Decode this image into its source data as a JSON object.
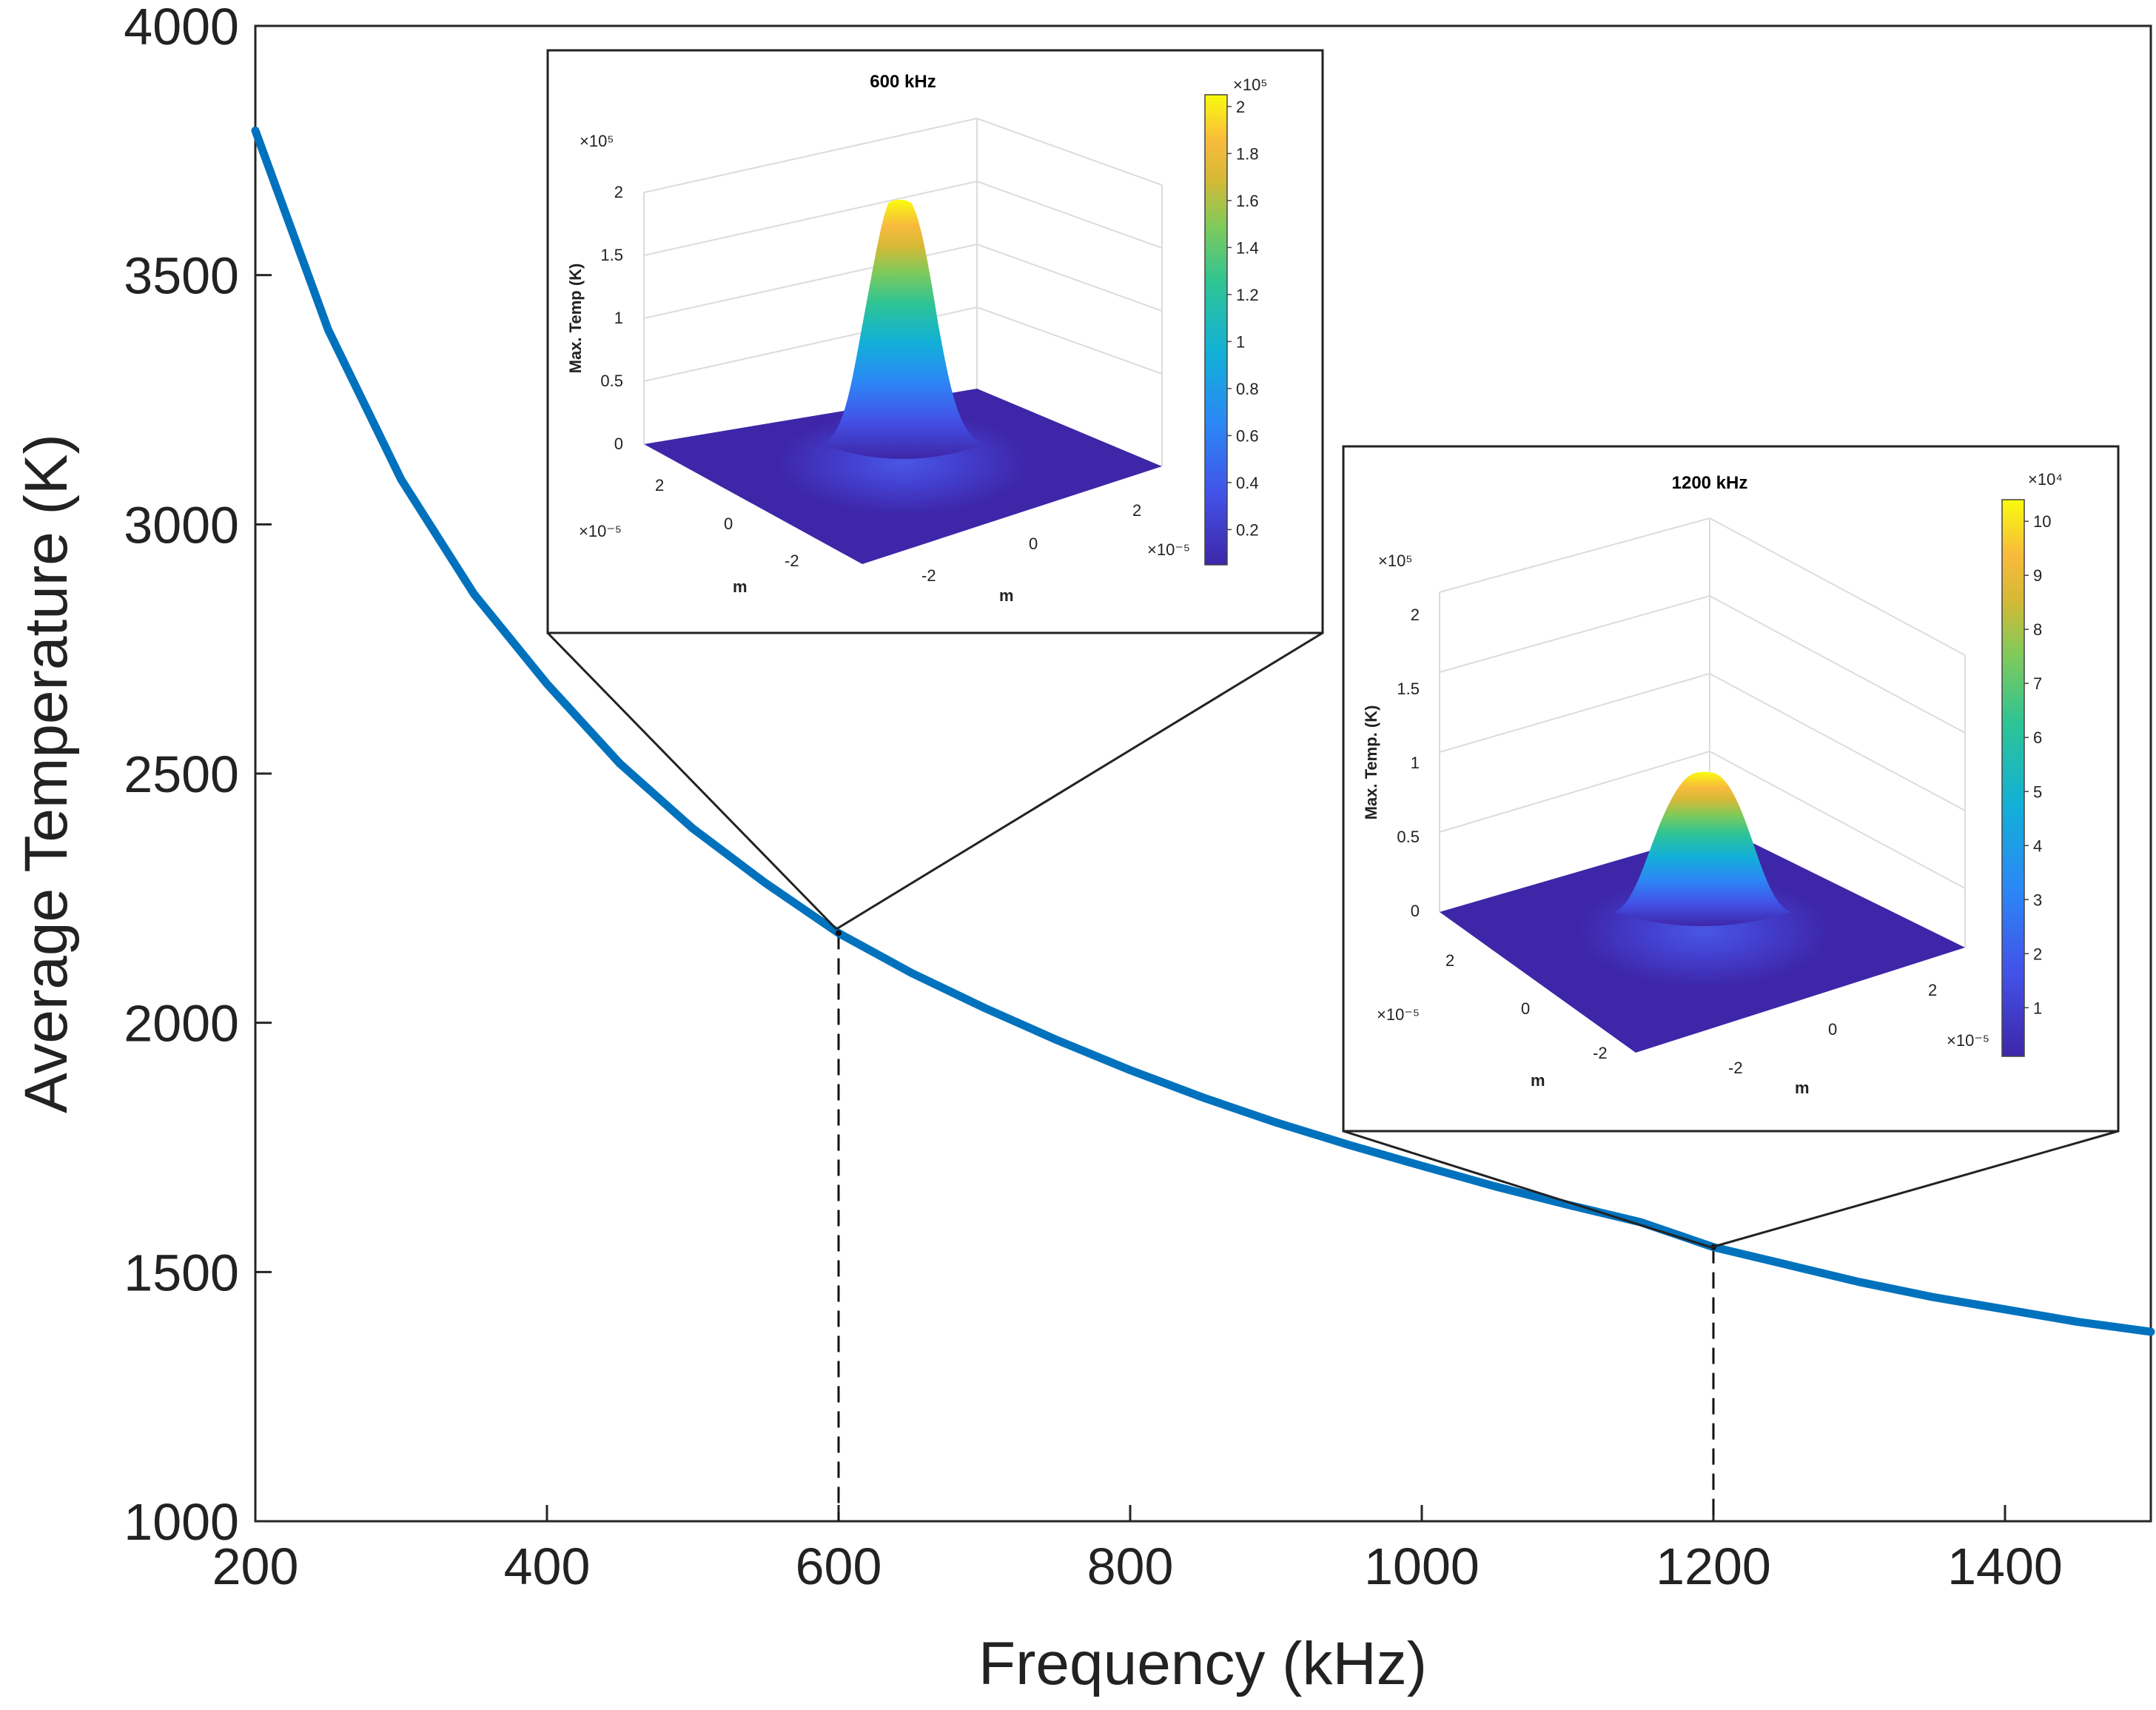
{
  "colors": {
    "curve": "#0072BD",
    "axis": "#262626",
    "surface_base": "#3E26A8",
    "surface_peak": "#F9FB0E"
  },
  "chart_data": {
    "type": "line",
    "xlabel": "Frequency (kHz)",
    "ylabel": "Average Temperature (K)",
    "xlim": [
      200,
      1500
    ],
    "ylim": [
      1000,
      4000
    ],
    "xticks": [
      "200",
      "400",
      "600",
      "800",
      "1000",
      "1200",
      "1400"
    ],
    "yticks": [
      "1000",
      "1500",
      "2000",
      "2500",
      "3000",
      "3500",
      "4000"
    ],
    "series": [
      {
        "name": "Average Temperature",
        "x": [
          200,
          250,
          300,
          350,
          400,
          450,
          500,
          550,
          600,
          650,
          700,
          750,
          800,
          850,
          900,
          950,
          1000,
          1050,
          1100,
          1150,
          1200,
          1250,
          1300,
          1350,
          1400,
          1450,
          1500
        ],
        "y": [
          3790,
          3390,
          3090,
          2860,
          2680,
          2520,
          2390,
          2280,
          2180,
          2100,
          2030,
          1965,
          1905,
          1850,
          1800,
          1755,
          1713,
          1672,
          1635,
          1600,
          1550,
          1515,
          1480,
          1450,
          1425,
          1400,
          1380
        ]
      }
    ],
    "markers": [
      {
        "x": 600,
        "y": 2180
      },
      {
        "x": 1200,
        "y": 1550
      }
    ],
    "insets": [
      {
        "title": "600 kHz",
        "zlabel": "Max. Temp (K)",
        "zticks": [
          "0",
          "0.5",
          "1",
          "1.5",
          "2"
        ],
        "z_exponent": "×10⁵",
        "colorbar_ticks": [
          "0.2",
          "0.4",
          "0.6",
          "0.8",
          "1",
          "1.2",
          "1.4",
          "1.6",
          "1.8",
          "2"
        ],
        "colorbar_exponent": "×10⁵",
        "axis_ticks_left": [
          "2",
          "0",
          "-2"
        ],
        "axis_ticks_right": [
          "2",
          "0",
          "-2"
        ],
        "axis_exponent": "×10⁻⁵",
        "axis_label": "m",
        "peak_value": 205000
      },
      {
        "title": "1200 kHz",
        "zlabel": "Max. Temp. (K)",
        "zticks": [
          "0",
          "0.5",
          "1",
          "1.5",
          "2"
        ],
        "z_exponent": "×10⁵",
        "colorbar_ticks": [
          "1",
          "2",
          "3",
          "4",
          "5",
          "6",
          "7",
          "8",
          "9",
          "10"
        ],
        "colorbar_exponent": "×10⁴",
        "axis_ticks_left": [
          "2",
          "0",
          "-2"
        ],
        "axis_ticks_right": [
          "2",
          "0",
          "-2"
        ],
        "axis_exponent": "×10⁻⁵",
        "axis_label": "m",
        "peak_value": 104000
      }
    ]
  }
}
